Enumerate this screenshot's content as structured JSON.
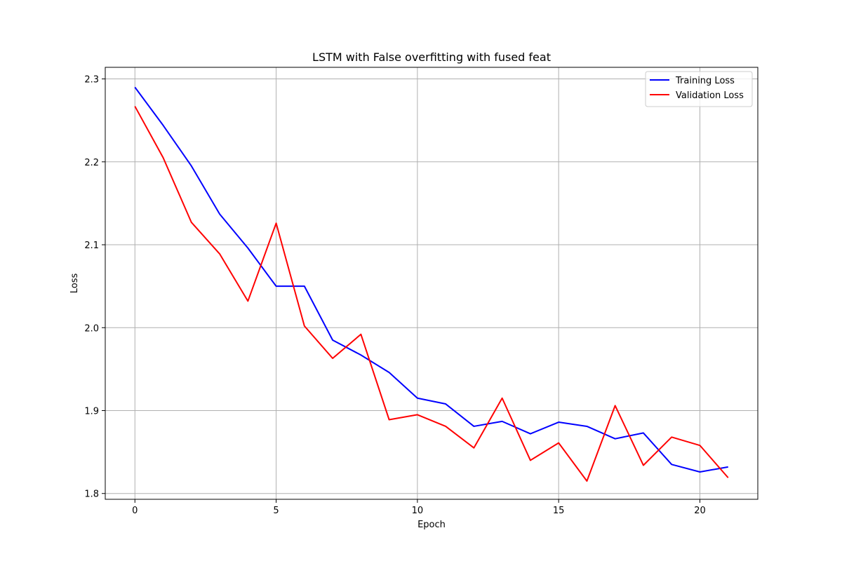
{
  "chart_data": {
    "type": "line",
    "title": "LSTM with False overfitting with fused feat",
    "xlabel": "Epoch",
    "ylabel": "Loss",
    "xlim": [
      -1.05,
      22.05
    ],
    "ylim": [
      1.793,
      2.314
    ],
    "xticks": [
      0,
      5,
      10,
      15,
      20
    ],
    "yticks": [
      1.8,
      1.9,
      2.0,
      2.1,
      2.2,
      2.3
    ],
    "ytick_labels": [
      "1.8",
      "1.9",
      "2.0",
      "2.1",
      "2.2",
      "2.3"
    ],
    "grid": true,
    "legend_position": "top-right",
    "x": [
      0,
      1,
      2,
      3,
      4,
      5,
      6,
      7,
      8,
      9,
      10,
      11,
      12,
      13,
      14,
      15,
      16,
      17,
      18,
      19,
      20,
      21
    ],
    "series": [
      {
        "name": "Training Loss",
        "color": "#0000ff",
        "values": [
          2.29,
          2.244,
          2.195,
          2.137,
          2.096,
          2.05,
          2.05,
          1.985,
          1.967,
          1.946,
          1.915,
          1.908,
          1.881,
          1.887,
          1.872,
          1.886,
          1.881,
          1.866,
          1.873,
          1.835,
          1.826,
          1.832
        ]
      },
      {
        "name": "Validation Loss",
        "color": "#ff0000",
        "values": [
          2.267,
          2.205,
          2.127,
          2.089,
          2.032,
          2.126,
          2.002,
          1.963,
          1.992,
          1.889,
          1.895,
          1.881,
          1.855,
          1.915,
          1.84,
          1.861,
          1.815,
          1.906,
          1.834,
          1.868,
          1.858,
          1.819
        ]
      }
    ]
  }
}
